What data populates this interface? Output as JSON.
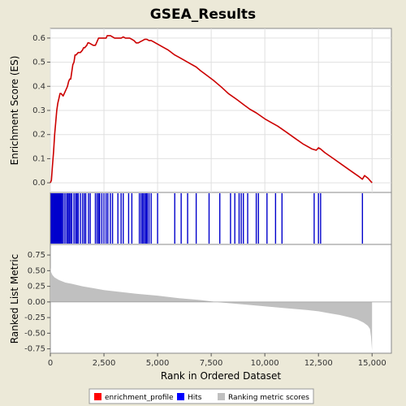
{
  "chart_data": {
    "type": "line",
    "title": "GSEA_Results",
    "x_axis": {
      "label": "Rank in Ordered Dataset",
      "range": [
        0,
        15900
      ],
      "ticks": [
        0,
        2500,
        5000,
        7500,
        10000,
        12500,
        15000
      ],
      "tick_labels": [
        "0",
        "2,500",
        "5,000",
        "7,500",
        "10,000",
        "12,500",
        "15,000"
      ]
    },
    "enrichment_panel": {
      "ylabel": "Enrichment Score (ES)",
      "ylim": [
        -0.04,
        0.64
      ],
      "ticks": [
        0.0,
        0.1,
        0.2,
        0.3,
        0.4,
        0.5,
        0.6
      ],
      "tick_labels": [
        "0.0",
        "0.1",
        "0.2",
        "0.3",
        "0.4",
        "0.5",
        "0.6"
      ],
      "grid": true,
      "series_color": "#cc0000",
      "series": {
        "name": "enrichment_profile",
        "x": [
          0,
          50,
          100,
          150,
          200,
          250,
          300,
          350,
          400,
          450,
          500,
          600,
          700,
          750,
          800,
          850,
          900,
          950,
          1000,
          1050,
          1100,
          1150,
          1200,
          1300,
          1400,
          1500,
          1550,
          1600,
          1700,
          1750,
          1800,
          1900,
          2000,
          2100,
          2200,
          2250,
          2300,
          2400,
          2500,
          2600,
          2650,
          2700,
          2750,
          2800,
          2900,
          3000,
          3100,
          3200,
          3300,
          3400,
          3500,
          3600,
          3700,
          3800,
          3900,
          4000,
          4100,
          4200,
          4300,
          4400,
          4500,
          4600,
          4700,
          4800,
          4900,
          5000,
          5200,
          5500,
          5800,
          6000,
          6200,
          6500,
          6800,
          7000,
          7300,
          7600,
          8000,
          8300,
          8700,
          9000,
          9300,
          9600,
          10000,
          10300,
          10600,
          11000,
          11400,
          11800,
          12200,
          12400,
          12500,
          12600,
          12800,
          13200,
          13600,
          14000,
          14400,
          14550,
          14650,
          14800,
          15000
        ],
        "y": [
          0.0,
          0.01,
          0.07,
          0.13,
          0.2,
          0.25,
          0.3,
          0.33,
          0.35,
          0.37,
          0.37,
          0.36,
          0.38,
          0.39,
          0.4,
          0.42,
          0.43,
          0.43,
          0.46,
          0.49,
          0.5,
          0.53,
          0.53,
          0.54,
          0.54,
          0.55,
          0.56,
          0.56,
          0.57,
          0.58,
          0.58,
          0.575,
          0.57,
          0.57,
          0.59,
          0.6,
          0.6,
          0.6,
          0.6,
          0.6,
          0.61,
          0.61,
          0.61,
          0.61,
          0.605,
          0.6,
          0.6,
          0.6,
          0.6,
          0.605,
          0.6,
          0.6,
          0.6,
          0.595,
          0.59,
          0.58,
          0.58,
          0.585,
          0.59,
          0.595,
          0.595,
          0.59,
          0.59,
          0.585,
          0.58,
          0.575,
          0.565,
          0.55,
          0.53,
          0.52,
          0.51,
          0.495,
          0.48,
          0.465,
          0.445,
          0.425,
          0.395,
          0.37,
          0.345,
          0.325,
          0.305,
          0.29,
          0.265,
          0.25,
          0.235,
          0.21,
          0.185,
          0.16,
          0.14,
          0.135,
          0.145,
          0.14,
          0.125,
          0.1,
          0.075,
          0.05,
          0.025,
          0.015,
          0.03,
          0.02,
          0.0
        ]
      }
    },
    "hits_panel": {
      "name": "Hits",
      "color": "#0000cc",
      "positions": [
        40,
        80,
        120,
        160,
        190,
        230,
        260,
        300,
        340,
        380,
        420,
        460,
        500,
        540,
        600,
        680,
        760,
        820,
        880,
        940,
        1000,
        1100,
        1180,
        1240,
        1300,
        1400,
        1500,
        1580,
        1650,
        1780,
        1860,
        2100,
        2180,
        2250,
        2300,
        2400,
        2500,
        2600,
        2680,
        2800,
        2900,
        3150,
        3300,
        3400,
        3650,
        3800,
        4150,
        4230,
        4300,
        4350,
        4420,
        4480,
        4520,
        4600,
        4700,
        5000,
        5800,
        6100,
        6400,
        6800,
        7400,
        7900,
        8400,
        8600,
        8800,
        8900,
        9000,
        9200,
        9600,
        9700,
        10100,
        10500,
        10800,
        12300,
        12500,
        12600,
        14550
      ]
    },
    "metric_panel": {
      "ylabel": "Ranked List Metric",
      "name": "Ranking metric scores",
      "color": "#c0c0c0",
      "ylim": [
        -0.82,
        0.92
      ],
      "ticks": [
        0.75,
        0.5,
        0.25,
        0.0,
        -0.25,
        -0.5,
        -0.75
      ],
      "tick_labels": [
        "0.75",
        "0.50",
        "0.25",
        "0.00",
        "-0.25",
        "-0.50",
        "-0.75"
      ],
      "x": [
        0,
        30,
        100,
        200,
        400,
        700,
        1000,
        1500,
        2000,
        2500,
        3000,
        4000,
        5000,
        6000,
        7000,
        7500,
        8000,
        9000,
        10000,
        11000,
        12000,
        12500,
        13000,
        13500,
        14000,
        14300,
        14600,
        14800,
        14900,
        14950,
        15000
      ],
      "y": [
        0.55,
        0.48,
        0.43,
        0.39,
        0.35,
        0.31,
        0.29,
        0.25,
        0.22,
        0.19,
        0.17,
        0.13,
        0.1,
        0.06,
        0.03,
        0.01,
        -0.01,
        -0.04,
        -0.07,
        -0.1,
        -0.13,
        -0.15,
        -0.18,
        -0.21,
        -0.25,
        -0.28,
        -0.33,
        -0.38,
        -0.43,
        -0.55,
        -0.78
      ]
    },
    "legend": {
      "position": "bottom",
      "entries": [
        {
          "label": "enrichment_profile",
          "color": "#ff0000"
        },
        {
          "label": "Hits",
          "color": "#0000ff"
        },
        {
          "label": "Ranking metric scores",
          "color": "#c0c0c0"
        }
      ]
    }
  }
}
